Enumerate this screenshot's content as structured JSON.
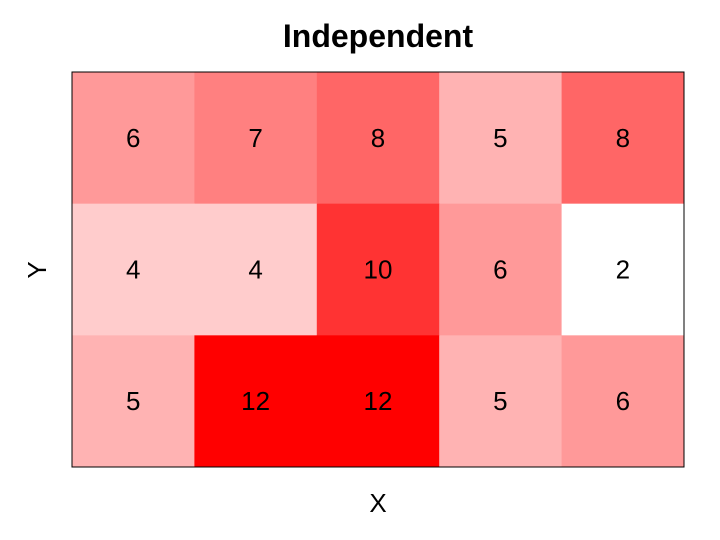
{
  "chart_data": {
    "type": "heatmap",
    "title": "Independent",
    "xlabel": "X",
    "ylabel": "Y",
    "grid": false,
    "legend": "none",
    "rows": 3,
    "cols": 5,
    "values": [
      [
        6,
        7,
        8,
        5,
        8
      ],
      [
        4,
        4,
        10,
        6,
        2
      ],
      [
        5,
        12,
        12,
        5,
        6
      ]
    ],
    "labels": [
      [
        "6",
        "7",
        "8",
        "5",
        "8"
      ],
      [
        "4",
        "4",
        "10",
        "6",
        "2"
      ],
      [
        "5",
        "12",
        "12",
        "5",
        "6"
      ]
    ],
    "colormap": {
      "low": "#ffffff",
      "high": "#ff0000"
    }
  }
}
